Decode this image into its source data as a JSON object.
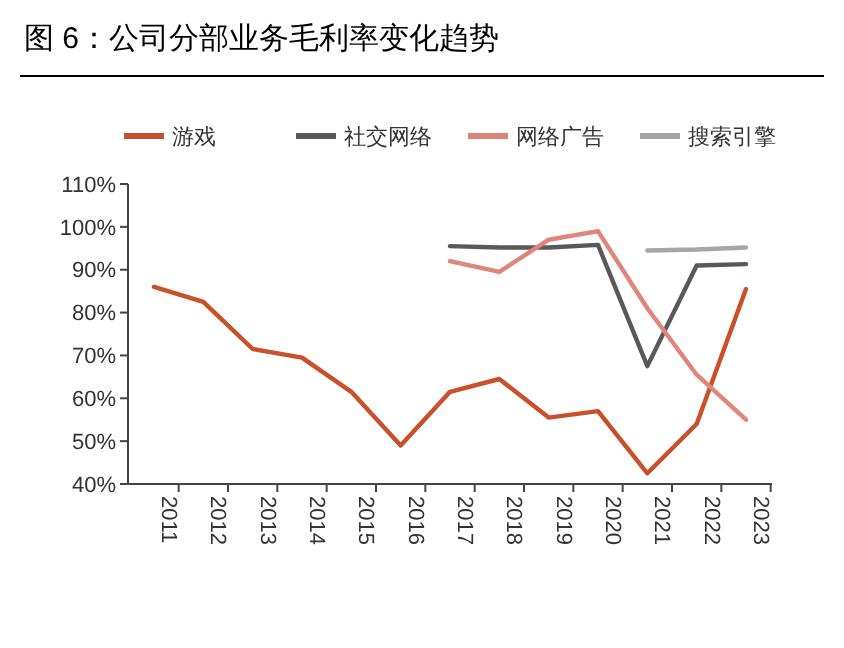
{
  "chart_data": {
    "type": "line",
    "title": "图 6：公司分部业务毛利率变化趋势",
    "categories": [
      "2011",
      "2012",
      "2013",
      "2014",
      "2015",
      "2016",
      "2017",
      "2018",
      "2019",
      "2020",
      "2021",
      "2022",
      "2023"
    ],
    "series": [
      {
        "name": "游戏",
        "color": "#c9502a",
        "values": [
          86,
          82.5,
          71.5,
          69.5,
          61.5,
          49,
          61.5,
          64.5,
          55.5,
          57,
          42.5,
          54,
          85.5
        ]
      },
      {
        "name": "社交网络",
        "color": "#595959",
        "values": [
          null,
          null,
          null,
          null,
          null,
          null,
          95.5,
          95.2,
          95.2,
          95.8,
          67.5,
          91,
          91.3
        ]
      },
      {
        "name": "网络广告",
        "color": "#e0857a",
        "values": [
          null,
          null,
          null,
          null,
          null,
          null,
          92,
          89.5,
          97,
          99,
          81,
          65.5,
          55
        ]
      },
      {
        "name": "搜索引擎",
        "color": "#a6a6a6",
        "values": [
          null,
          null,
          null,
          null,
          null,
          null,
          null,
          null,
          null,
          null,
          94.5,
          94.7,
          95.2
        ]
      }
    ],
    "ylim": [
      40,
      110
    ],
    "yticks": [
      {
        "value": 40,
        "label": "40%"
      },
      {
        "value": 50,
        "label": "50%"
      },
      {
        "value": 60,
        "label": "60%"
      },
      {
        "value": 70,
        "label": "70%"
      },
      {
        "value": 80,
        "label": "80%"
      },
      {
        "value": 90,
        "label": "90%"
      },
      {
        "value": 100,
        "label": "100%"
      },
      {
        "value": 110,
        "label": "110%"
      }
    ],
    "legend": "top",
    "grid": false,
    "marker": "none",
    "line_style": "solid"
  }
}
